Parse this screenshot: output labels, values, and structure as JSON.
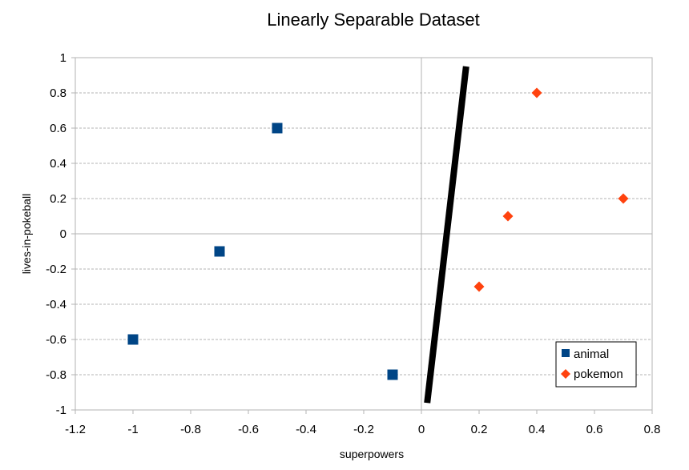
{
  "chart_data": {
    "type": "scatter",
    "title": "Linearly Separable Dataset",
    "xlabel": "superpowers",
    "ylabel": "lives-in-pokeball",
    "xlim": [
      -1.2,
      0.8
    ],
    "ylim": [
      -1,
      1
    ],
    "x_ticks": [
      "-1.2",
      "-1",
      "-0.8",
      "-0.6",
      "-0.4",
      "-0.2",
      "0",
      "0.2",
      "0.4",
      "0.6",
      "0.8"
    ],
    "y_ticks": [
      "1",
      "0.8",
      "0.6",
      "0.4",
      "0.2",
      "0",
      "-0.2",
      "-0.4",
      "-0.6",
      "-0.8",
      "-1"
    ],
    "grid": true,
    "legend_position": "bottom-right",
    "series": [
      {
        "name": "animal",
        "marker": "square",
        "color": "#004586",
        "points": [
          [
            -1,
            -0.6
          ],
          [
            -0.7,
            -0.1
          ],
          [
            -0.5,
            0.6
          ],
          [
            -0.1,
            -0.8
          ]
        ]
      },
      {
        "name": "pokemon",
        "marker": "diamond",
        "color": "#ff420e",
        "points": [
          [
            0.2,
            -0.3
          ],
          [
            0.3,
            0.1
          ],
          [
            0.4,
            0.8
          ],
          [
            0.7,
            0.2
          ]
        ]
      }
    ],
    "separator_line": {
      "color": "#000000",
      "points": [
        [
          0.02,
          -0.96
        ],
        [
          0.155,
          0.95
        ]
      ]
    }
  }
}
